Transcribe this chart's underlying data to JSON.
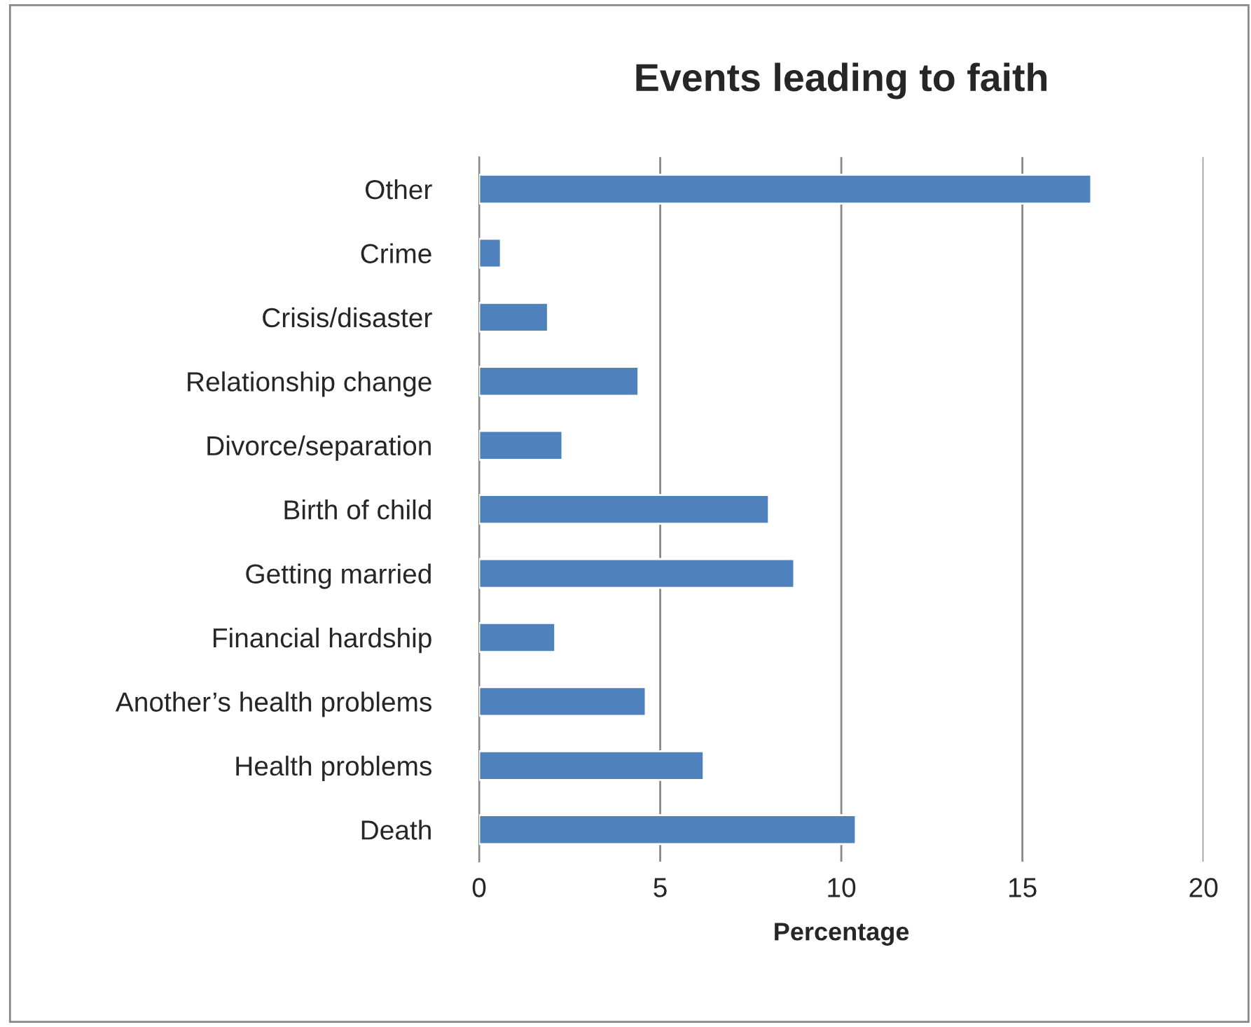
{
  "chart_data": {
    "type": "bar",
    "orientation": "horizontal",
    "title": "Events leading to faith",
    "xlabel": "Percentage",
    "categories": [
      "Other",
      "Crime",
      "Crisis/disaster",
      "Relationship change",
      "Divorce/separation",
      "Birth of child",
      "Getting married",
      "Financial hardship",
      "Another’s health problems",
      "Health problems",
      "Death"
    ],
    "values": [
      16.9,
      0.6,
      1.9,
      4.4,
      2.3,
      8.0,
      8.7,
      2.1,
      4.6,
      6.2,
      10.4
    ],
    "color": "#4f81bd",
    "xlim": [
      0,
      20
    ],
    "xticks": [
      0,
      5,
      10,
      15,
      20
    ],
    "grid": "x",
    "legend": false
  }
}
